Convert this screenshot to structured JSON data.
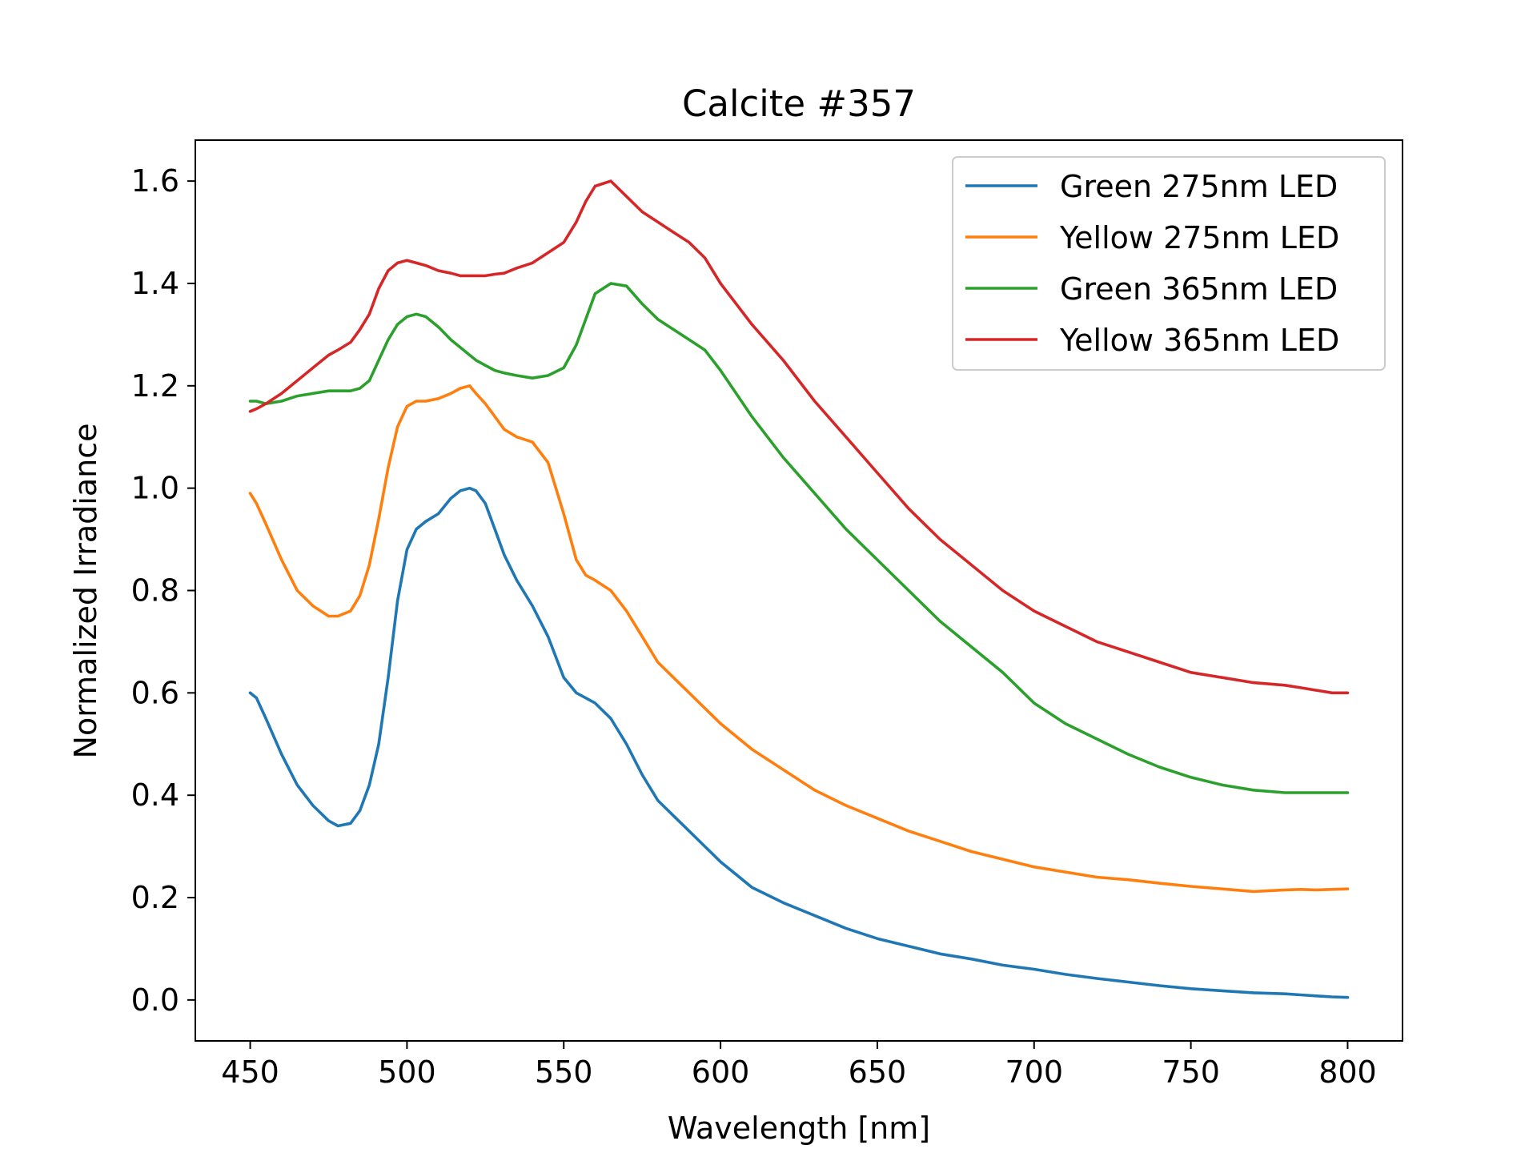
{
  "chart_data": {
    "type": "line",
    "title": "Calcite #357",
    "xlabel": "Wavelength [nm]",
    "ylabel": "Normalized Irradiance",
    "xlim": [
      432.5,
      817.5
    ],
    "ylim": [
      -0.08,
      1.68
    ],
    "xticks": [
      450,
      500,
      550,
      600,
      650,
      700,
      750,
      800
    ],
    "yticks": [
      0.0,
      0.2,
      0.4,
      0.6,
      0.8,
      1.0,
      1.2,
      1.4,
      1.6
    ],
    "ytick_labels": [
      "0.0",
      "0.2",
      "0.4",
      "0.6",
      "0.8",
      "1.0",
      "1.2",
      "1.4",
      "1.6"
    ],
    "grid": false,
    "legend_position": "top-right",
    "series": [
      {
        "name": "Green 275nm LED",
        "color": "#1f77b4",
        "x": [
          450,
          452,
          455,
          460,
          465,
          470,
          475,
          478,
          482,
          485,
          488,
          491,
          494,
          497,
          500,
          503,
          506,
          510,
          514,
          517,
          520,
          522,
          525,
          528,
          531,
          535,
          540,
          545,
          550,
          554,
          557,
          560,
          565,
          570,
          575,
          580,
          585,
          590,
          595,
          600,
          610,
          620,
          630,
          640,
          650,
          660,
          670,
          680,
          690,
          700,
          710,
          720,
          730,
          740,
          750,
          760,
          770,
          780,
          785,
          790,
          795,
          800
        ],
        "values": [
          0.6,
          0.59,
          0.55,
          0.48,
          0.42,
          0.38,
          0.35,
          0.34,
          0.345,
          0.37,
          0.42,
          0.5,
          0.63,
          0.78,
          0.88,
          0.92,
          0.935,
          0.95,
          0.98,
          0.995,
          1.0,
          0.995,
          0.97,
          0.92,
          0.87,
          0.82,
          0.77,
          0.71,
          0.63,
          0.6,
          0.59,
          0.58,
          0.55,
          0.5,
          0.44,
          0.39,
          0.36,
          0.33,
          0.3,
          0.27,
          0.22,
          0.19,
          0.165,
          0.14,
          0.12,
          0.105,
          0.09,
          0.08,
          0.068,
          0.06,
          0.05,
          0.042,
          0.035,
          0.028,
          0.022,
          0.018,
          0.014,
          0.012,
          0.01,
          0.008,
          0.006,
          0.005
        ]
      },
      {
        "name": "Yellow 275nm LED",
        "color": "#ff7f0e",
        "x": [
          450,
          452,
          455,
          460,
          465,
          470,
          475,
          478,
          482,
          485,
          488,
          491,
          494,
          497,
          500,
          503,
          506,
          510,
          514,
          517,
          520,
          522,
          525,
          528,
          531,
          535,
          540,
          545,
          550,
          554,
          557,
          560,
          565,
          570,
          575,
          580,
          585,
          590,
          595,
          600,
          610,
          620,
          630,
          640,
          650,
          660,
          670,
          680,
          690,
          700,
          710,
          720,
          730,
          740,
          750,
          760,
          770,
          780,
          785,
          790,
          795,
          800
        ],
        "values": [
          0.99,
          0.97,
          0.93,
          0.86,
          0.8,
          0.77,
          0.75,
          0.75,
          0.76,
          0.79,
          0.85,
          0.94,
          1.04,
          1.12,
          1.16,
          1.17,
          1.17,
          1.175,
          1.185,
          1.195,
          1.2,
          1.185,
          1.165,
          1.14,
          1.115,
          1.1,
          1.09,
          1.05,
          0.95,
          0.86,
          0.83,
          0.82,
          0.8,
          0.76,
          0.71,
          0.66,
          0.63,
          0.6,
          0.57,
          0.54,
          0.49,
          0.45,
          0.41,
          0.38,
          0.355,
          0.33,
          0.31,
          0.29,
          0.275,
          0.26,
          0.25,
          0.24,
          0.235,
          0.228,
          0.222,
          0.217,
          0.212,
          0.215,
          0.216,
          0.215,
          0.216,
          0.217
        ]
      },
      {
        "name": "Green 365nm LED",
        "color": "#2ca02c",
        "x": [
          450,
          452,
          455,
          460,
          465,
          470,
          475,
          478,
          482,
          485,
          488,
          491,
          494,
          497,
          500,
          503,
          506,
          510,
          514,
          517,
          520,
          522,
          525,
          528,
          531,
          535,
          540,
          545,
          550,
          554,
          557,
          560,
          565,
          570,
          575,
          580,
          585,
          590,
          595,
          600,
          610,
          620,
          630,
          640,
          650,
          660,
          670,
          680,
          690,
          700,
          710,
          720,
          730,
          740,
          750,
          760,
          770,
          780,
          785,
          790,
          795,
          800
        ],
        "values": [
          1.17,
          1.17,
          1.165,
          1.17,
          1.18,
          1.185,
          1.19,
          1.19,
          1.19,
          1.195,
          1.21,
          1.25,
          1.29,
          1.32,
          1.335,
          1.34,
          1.335,
          1.315,
          1.29,
          1.275,
          1.26,
          1.25,
          1.24,
          1.23,
          1.225,
          1.22,
          1.215,
          1.22,
          1.235,
          1.28,
          1.33,
          1.38,
          1.4,
          1.395,
          1.36,
          1.33,
          1.31,
          1.29,
          1.27,
          1.23,
          1.14,
          1.06,
          0.99,
          0.92,
          0.86,
          0.8,
          0.74,
          0.69,
          0.64,
          0.58,
          0.54,
          0.51,
          0.48,
          0.455,
          0.435,
          0.42,
          0.41,
          0.405,
          0.405,
          0.405,
          0.405,
          0.405
        ]
      },
      {
        "name": "Yellow 365nm LED",
        "color": "#d62728",
        "x": [
          450,
          452,
          455,
          460,
          465,
          470,
          475,
          478,
          482,
          485,
          488,
          491,
          494,
          497,
          500,
          503,
          506,
          510,
          514,
          517,
          520,
          522,
          525,
          528,
          531,
          535,
          540,
          545,
          550,
          554,
          557,
          560,
          565,
          570,
          575,
          580,
          585,
          590,
          595,
          600,
          610,
          620,
          630,
          640,
          650,
          660,
          670,
          680,
          690,
          700,
          710,
          720,
          730,
          740,
          750,
          760,
          770,
          780,
          785,
          790,
          795,
          800
        ],
        "values": [
          1.15,
          1.155,
          1.165,
          1.185,
          1.21,
          1.235,
          1.26,
          1.27,
          1.285,
          1.31,
          1.34,
          1.39,
          1.425,
          1.44,
          1.445,
          1.44,
          1.435,
          1.425,
          1.42,
          1.415,
          1.415,
          1.415,
          1.415,
          1.418,
          1.42,
          1.43,
          1.44,
          1.46,
          1.48,
          1.52,
          1.56,
          1.59,
          1.6,
          1.57,
          1.54,
          1.52,
          1.5,
          1.48,
          1.45,
          1.4,
          1.32,
          1.25,
          1.17,
          1.1,
          1.03,
          0.96,
          0.9,
          0.85,
          0.8,
          0.76,
          0.73,
          0.7,
          0.68,
          0.66,
          0.64,
          0.63,
          0.62,
          0.615,
          0.61,
          0.605,
          0.6,
          0.6
        ]
      }
    ]
  }
}
